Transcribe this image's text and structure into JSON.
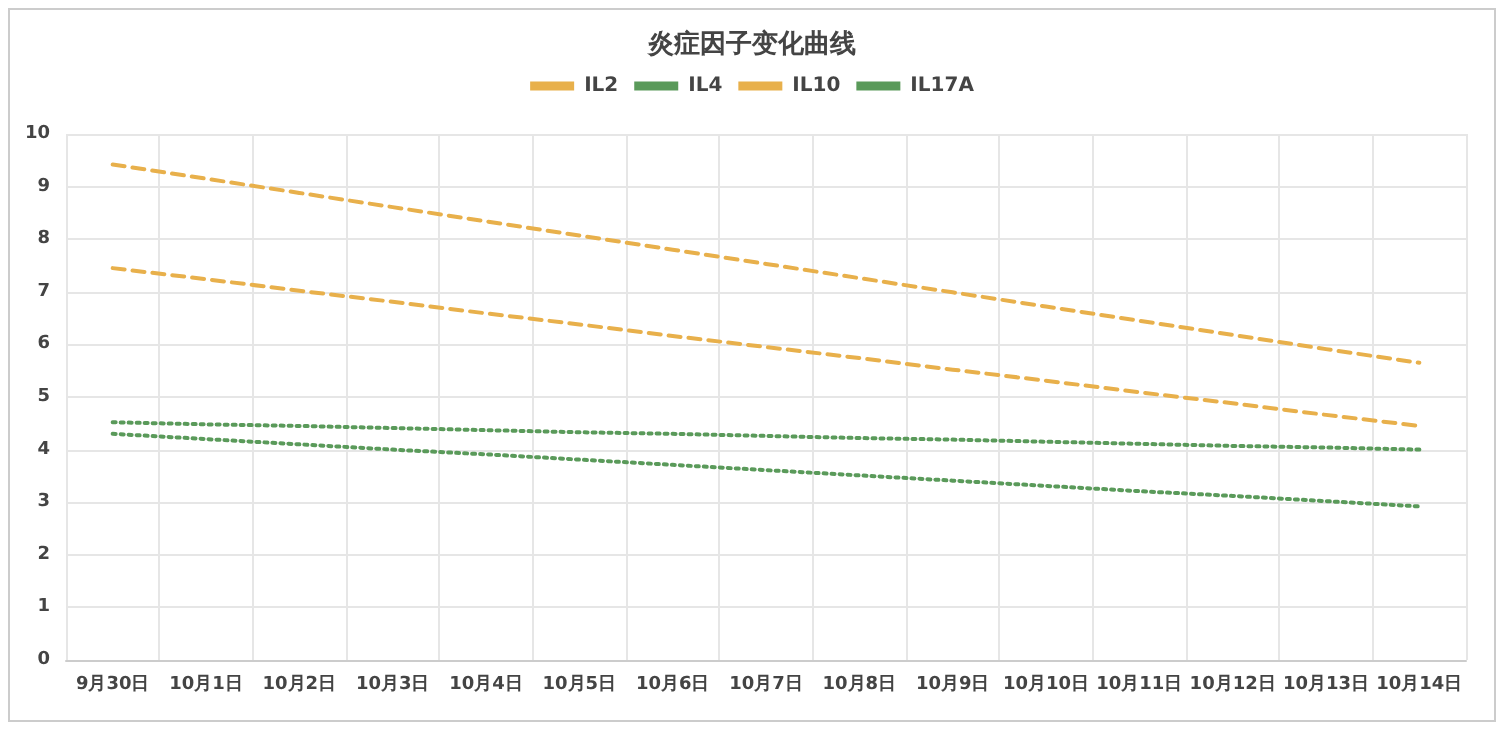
{
  "chart_data": {
    "type": "line",
    "title": "炎症因子变化曲线",
    "categories": [
      "9月30日",
      "10月1日",
      "10月2日",
      "10月3日",
      "10月4日",
      "10月5日",
      "10月6日",
      "10月7日",
      "10月8日",
      "10月9日",
      "10月10日",
      "10月11日",
      "10月12日",
      "10月13日",
      "10月14日"
    ],
    "series": [
      {
        "name": "IL2",
        "color": "#e8b04b",
        "line_style": "dashed",
        "values": [
          9.42,
          9.15,
          8.88,
          8.61,
          8.34,
          8.07,
          7.8,
          7.53,
          7.26,
          6.99,
          6.72,
          6.45,
          6.18,
          5.91,
          5.65
        ]
      },
      {
        "name": "IL4",
        "color": "#5a9a5a",
        "line_style": "dotted",
        "values": [
          4.52,
          4.48,
          4.45,
          4.41,
          4.37,
          4.33,
          4.3,
          4.26,
          4.22,
          4.19,
          4.15,
          4.11,
          4.07,
          4.04,
          4.0
        ]
      },
      {
        "name": "IL10",
        "color": "#e8b04b",
        "line_style": "dashed",
        "values": [
          7.45,
          7.24,
          7.02,
          6.81,
          6.59,
          6.38,
          6.16,
          5.95,
          5.74,
          5.52,
          5.31,
          5.09,
          4.88,
          4.66,
          4.45
        ]
      },
      {
        "name": "IL17A",
        "color": "#5a9a5a",
        "line_style": "dotted",
        "values": [
          4.3,
          4.2,
          4.1,
          4.0,
          3.91,
          3.81,
          3.71,
          3.61,
          3.51,
          3.41,
          3.31,
          3.21,
          3.12,
          3.02,
          2.92
        ]
      }
    ],
    "ylim": [
      0,
      10
    ],
    "yticks": [
      0,
      1,
      2,
      3,
      4,
      5,
      6,
      7,
      8,
      9,
      10
    ],
    "grid": true,
    "legend": "top",
    "marker": "none"
  }
}
